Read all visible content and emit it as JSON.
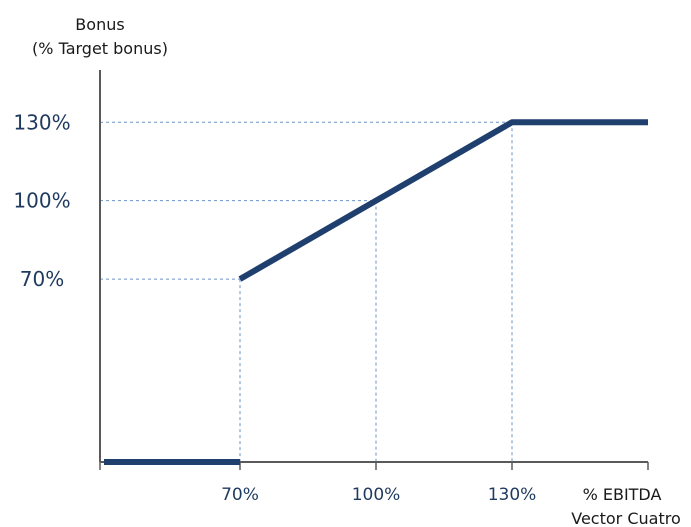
{
  "chart_data": {
    "type": "line",
    "ylabel": [
      "Bonus",
      "(% Target bonus)"
    ],
    "xlabel": [
      "% EBITDA",
      "Vector Cuatro"
    ],
    "x_ticks": [
      {
        "value": 70,
        "label": "70%"
      },
      {
        "value": 100,
        "label": "100%"
      },
      {
        "value": 130,
        "label": "130%"
      }
    ],
    "y_ticks": [
      {
        "value": 70,
        "label": "70%"
      },
      {
        "value": 100,
        "label": "100%"
      },
      {
        "value": 130,
        "label": "130%"
      }
    ],
    "xlim": [
      40,
      160
    ],
    "ylim": [
      0,
      150
    ],
    "series": [
      {
        "segments": [
          [
            [
              40,
              0
            ],
            [
              70,
              0
            ]
          ],
          [
            [
              70,
              70
            ],
            [
              130,
              130
            ],
            [
              160,
              130
            ]
          ]
        ]
      }
    ],
    "reference_lines": [
      {
        "x": 70,
        "y": 70
      },
      {
        "x": 100,
        "y": 100
      },
      {
        "x": 130,
        "y": 130
      }
    ],
    "grid": false,
    "colors": {
      "line": "#1f3f6e",
      "axis": "#5a5a5a",
      "reference": "#6a92c9",
      "tick_label": "#1f3a5f"
    }
  }
}
